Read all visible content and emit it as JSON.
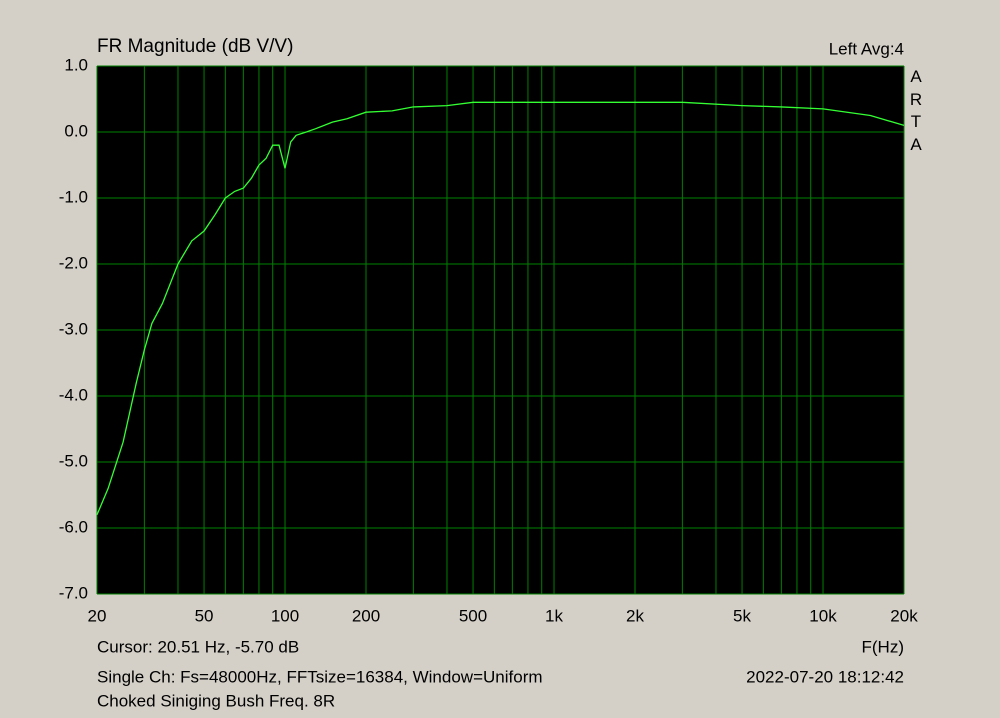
{
  "chart_data": {
    "type": "line",
    "title": "FR Magnitude (dB V/V)",
    "channel_label": "Left  Avg:4",
    "brand": "ARTA",
    "cursor_text": "Cursor: 20.51 Hz, -5.70 dB",
    "xlabel": "F(Hz)",
    "info_text": "Single Ch: Fs=48000Hz, FFTsize=16384, Window=Uniform",
    "timestamp": "2022-07-20  18:12:42",
    "caption": "Choked Siniging Bush Freq. 8R",
    "xscale": "log",
    "xlim": [
      20,
      20000
    ],
    "xticks": [
      20,
      50,
      100,
      200,
      500,
      {
        "value": 1000,
        "label": "1k"
      },
      {
        "value": 2000,
        "label": "2k"
      },
      {
        "value": 5000,
        "label": "5k"
      },
      {
        "value": 10000,
        "label": "10k"
      },
      {
        "value": 20000,
        "label": "20k"
      }
    ],
    "minor_xticks": [
      30,
      40,
      60,
      70,
      80,
      90,
      300,
      400,
      600,
      700,
      800,
      900,
      3000,
      4000,
      6000,
      7000,
      8000,
      9000
    ],
    "ylim": [
      -7,
      1
    ],
    "yticks": [
      {
        "value": 1,
        "label": "1.0"
      },
      {
        "value": 0,
        "label": "0.0"
      },
      {
        "value": -1,
        "label": "-1.0"
      },
      {
        "value": -2,
        "label": "-2.0"
      },
      {
        "value": -3,
        "label": "-3.0"
      },
      {
        "value": -4,
        "label": "-4.0"
      },
      {
        "value": -5,
        "label": "-5.0"
      },
      {
        "value": -6,
        "label": "-6.0"
      },
      {
        "value": -7,
        "label": "-7.0"
      }
    ],
    "grid": true,
    "background": "#000000",
    "grid_color": "#008000",
    "series": [
      {
        "name": "Left",
        "color": "#33ff33",
        "x": [
          20,
          22,
          25,
          28,
          30,
          32,
          35,
          40,
          45,
          50,
          55,
          60,
          65,
          70,
          75,
          80,
          85,
          90,
          95,
          100,
          105,
          110,
          120,
          130,
          150,
          170,
          200,
          250,
          300,
          400,
          500,
          700,
          1000,
          1500,
          2000,
          3000,
          5000,
          7000,
          10000,
          15000,
          20000
        ],
        "values": [
          -5.8,
          -5.4,
          -4.7,
          -3.8,
          -3.3,
          -2.9,
          -2.6,
          -2.0,
          -1.65,
          -1.5,
          -1.25,
          -1.0,
          -0.9,
          -0.85,
          -0.7,
          -0.5,
          -0.4,
          -0.2,
          -0.2,
          -0.55,
          -0.15,
          -0.05,
          0.0,
          0.05,
          0.15,
          0.2,
          0.3,
          0.32,
          0.38,
          0.4,
          0.45,
          0.45,
          0.45,
          0.45,
          0.45,
          0.45,
          0.4,
          0.38,
          0.35,
          0.25,
          0.1
        ]
      }
    ]
  }
}
